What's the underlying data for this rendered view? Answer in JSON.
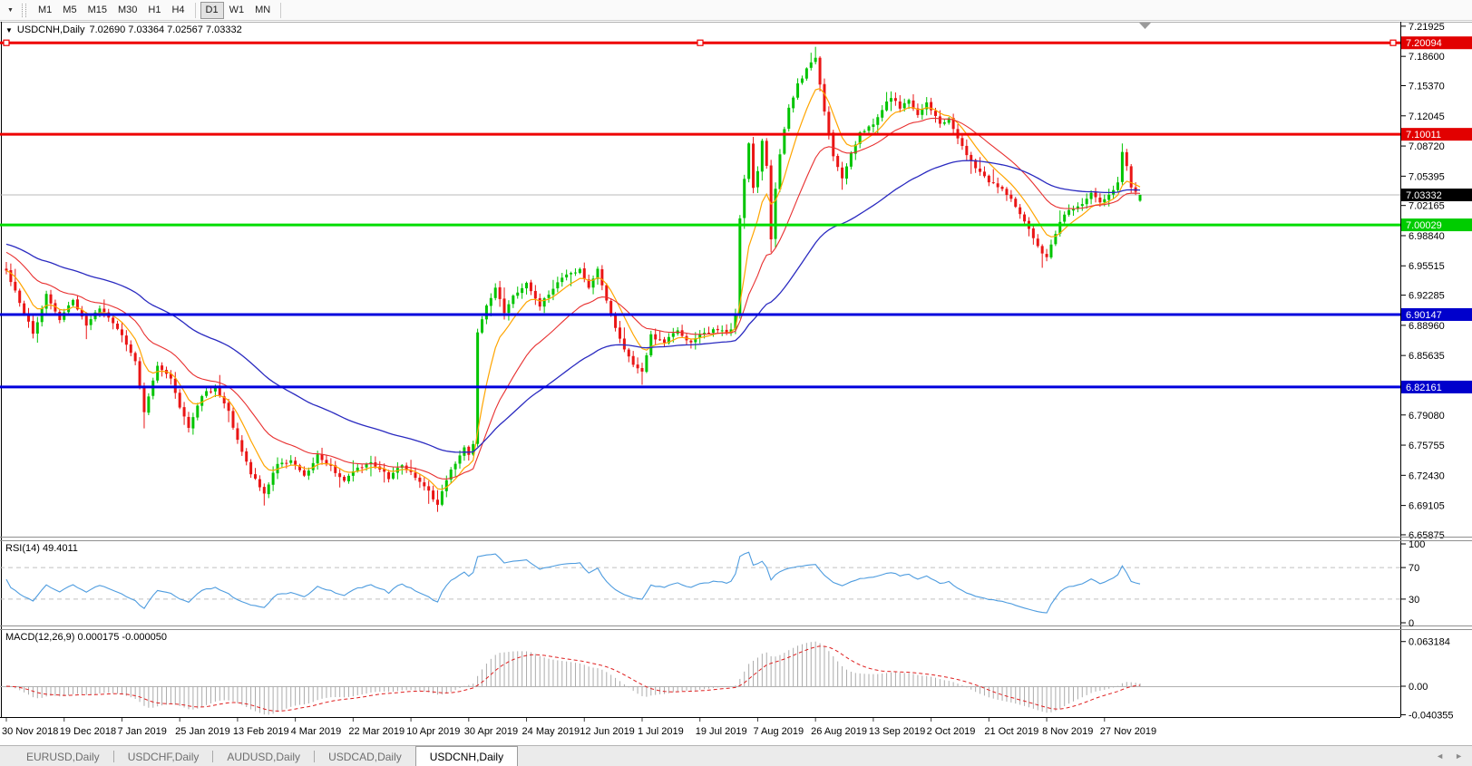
{
  "icons": {
    "toolbar_dropdown": "▼",
    "title_arrow": "▼",
    "tabs_prev": "◄",
    "tabs_next": "►",
    "shift_marker": "▼"
  },
  "toolbar": {
    "timeframes": [
      "M1",
      "M5",
      "M15",
      "M30",
      "H1",
      "H4",
      "D1",
      "W1",
      "MN"
    ],
    "selected": "D1",
    "separators_after": [
      5,
      8
    ]
  },
  "chart": {
    "symbol_period": "USDCNH,Daily",
    "ohlc_text": "7.02690 7.03364 7.02567 7.03332",
    "open": "7.02690",
    "high": "7.03364",
    "low": "7.02567",
    "close": "7.03332",
    "price_axis_ticks": [
      "7.21925",
      "7.18600",
      "7.15370",
      "7.12045",
      "7.08720",
      "7.05395",
      "7.02165",
      "6.98840",
      "6.95515",
      "6.92285",
      "6.88960",
      "6.85635",
      "6.79080",
      "6.75755",
      "6.72430",
      "6.69105",
      "6.65875"
    ],
    "horizontal_lines": [
      {
        "price": "7.20094",
        "color": "#EE0000",
        "label_bg": "#E20000",
        "selected": true
      },
      {
        "price": "7.10011",
        "color": "#EE0000",
        "label_bg": "#E20000",
        "selected": false
      },
      {
        "price": "7.00029",
        "color": "#00DD00",
        "label_bg": "#00CC00",
        "selected": false
      },
      {
        "price": "6.90147",
        "color": "#0000DD",
        "label_bg": "#0000CC",
        "selected": false
      },
      {
        "price": "6.82161",
        "color": "#0000DD",
        "label_bg": "#0000CC",
        "selected": false
      }
    ],
    "current_price": {
      "label": "7.03332",
      "label_bg": "#000000"
    },
    "colors": {
      "up": "#00C400",
      "down": "#EA1515",
      "ma_fast": "#FFA500",
      "ma_mid": "#E83030",
      "ma_slow": "#2A2AC0",
      "rsi": "#4E9CDF",
      "macd_hist": "#ABABAB",
      "macd_signal": "#DF2020",
      "current_price_line": "#B8B8B8",
      "level_dash": "#C0C0C0"
    }
  },
  "rsi": {
    "label": "RSI(14) 49.4011",
    "name": "RSI",
    "period": 14,
    "current": 49.4011,
    "axis_ticks": [
      "100",
      "70",
      "30",
      "0"
    ],
    "dashed_levels": [
      70,
      30
    ]
  },
  "macd": {
    "label": "MACD(12,26,9) 0.000175 -0.000050",
    "name": "MACD",
    "fast": 12,
    "slow": 26,
    "signal_period": 9,
    "current_macd": 0.000175,
    "current_signal": -5e-05,
    "axis_ticks": [
      "0.063184",
      "0.00",
      "-0.040355"
    ]
  },
  "tabs": {
    "items": [
      {
        "label": "EURUSD,Daily",
        "active": false
      },
      {
        "label": "USDCHF,Daily",
        "active": false
      },
      {
        "label": "AUDUSD,Daily",
        "active": false
      },
      {
        "label": "USDCAD,Daily",
        "active": false
      },
      {
        "label": "USDCNH,Daily",
        "active": true
      }
    ]
  },
  "chart_data": {
    "type": "candlestick",
    "symbol": "USDCNH",
    "timeframe": "Daily",
    "bar_count": 256,
    "bars_per_date_tick": 13,
    "y_range": [
      6.65875,
      7.21925
    ],
    "current_bar_ohlc": {
      "open": 7.0269,
      "high": 7.03364,
      "low": 7.02567,
      "close": 7.03332
    },
    "date_labels": [
      "30 Nov 2018",
      "19 Dec 2018",
      "7 Jan 2019",
      "25 Jan 2019",
      "13 Feb 2019",
      "4 Mar 2019",
      "22 Mar 2019",
      "10 Apr 2019",
      "30 Apr 2019",
      "24 May 2019",
      "12 Jun 2019",
      "1 Jul 2019",
      "19 Jul 2019",
      "7 Aug 2019",
      "26 Aug 2019",
      "13 Sep 2019",
      "2 Oct 2019",
      "21 Oct 2019",
      "8 Nov 2019",
      "27 Nov 2019"
    ],
    "horizontal_levels": [
      7.20094,
      7.10011,
      7.00029,
      6.90147,
      6.82161
    ],
    "close_path_anchors": [
      [
        0,
        6.95
      ],
      [
        3,
        6.915
      ],
      [
        6,
        6.88
      ],
      [
        9,
        6.925
      ],
      [
        12,
        6.895
      ],
      [
        15,
        6.918
      ],
      [
        18,
        6.89
      ],
      [
        21,
        6.908
      ],
      [
        24,
        6.892
      ],
      [
        26,
        6.88
      ],
      [
        29,
        6.848
      ],
      [
        31,
        6.795
      ],
      [
        34,
        6.845
      ],
      [
        37,
        6.83
      ],
      [
        39,
        6.8
      ],
      [
        41,
        6.778
      ],
      [
        44,
        6.812
      ],
      [
        47,
        6.822
      ],
      [
        50,
        6.795
      ],
      [
        52,
        6.762
      ],
      [
        55,
        6.726
      ],
      [
        58,
        6.706
      ],
      [
        61,
        6.735
      ],
      [
        64,
        6.742
      ],
      [
        67,
        6.722
      ],
      [
        70,
        6.748
      ],
      [
        73,
        6.733
      ],
      [
        76,
        6.718
      ],
      [
        78,
        6.73
      ],
      [
        82,
        6.74
      ],
      [
        86,
        6.722
      ],
      [
        89,
        6.735
      ],
      [
        91,
        6.728
      ],
      [
        94,
        6.712
      ],
      [
        97,
        6.692
      ],
      [
        100,
        6.73
      ],
      [
        103,
        6.756
      ],
      [
        104,
        6.745
      ],
      [
        105,
        6.76
      ],
      [
        106,
        6.88
      ],
      [
        108,
        6.912
      ],
      [
        110,
        6.93
      ],
      [
        112,
        6.905
      ],
      [
        114,
        6.922
      ],
      [
        117,
        6.935
      ],
      [
        120,
        6.912
      ],
      [
        123,
        6.93
      ],
      [
        126,
        6.945
      ],
      [
        129,
        6.952
      ],
      [
        131,
        6.93
      ],
      [
        133,
        6.95
      ],
      [
        135,
        6.915
      ],
      [
        137,
        6.885
      ],
      [
        139,
        6.862
      ],
      [
        141,
        6.848
      ],
      [
        143,
        6.838
      ],
      [
        145,
        6.878
      ],
      [
        148,
        6.872
      ],
      [
        151,
        6.885
      ],
      [
        154,
        6.87
      ],
      [
        156,
        6.878
      ],
      [
        159,
        6.885
      ],
      [
        161,
        6.882
      ],
      [
        163,
        6.885
      ],
      [
        164,
        6.902
      ],
      [
        165,
        7.008
      ],
      [
        166,
        7.05
      ],
      [
        167,
        7.088
      ],
      [
        168,
        7.042
      ],
      [
        169,
        7.06
      ],
      [
        170,
        7.092
      ],
      [
        171,
        7.065
      ],
      [
        172,
        6.985
      ],
      [
        173,
        7.042
      ],
      [
        174,
        7.078
      ],
      [
        175,
        7.105
      ],
      [
        176,
        7.13
      ],
      [
        178,
        7.155
      ],
      [
        180,
        7.172
      ],
      [
        182,
        7.185
      ],
      [
        184,
        7.125
      ],
      [
        186,
        7.075
      ],
      [
        188,
        7.052
      ],
      [
        190,
        7.078
      ],
      [
        192,
        7.102
      ],
      [
        195,
        7.112
      ],
      [
        197,
        7.128
      ],
      [
        199,
        7.142
      ],
      [
        201,
        7.128
      ],
      [
        203,
        7.138
      ],
      [
        205,
        7.12
      ],
      [
        207,
        7.135
      ],
      [
        208,
        7.128
      ],
      [
        210,
        7.112
      ],
      [
        212,
        7.118
      ],
      [
        214,
        7.095
      ],
      [
        216,
        7.078
      ],
      [
        218,
        7.062
      ],
      [
        220,
        7.055
      ],
      [
        221,
        7.048
      ],
      [
        224,
        7.04
      ],
      [
        227,
        7.022
      ],
      [
        230,
        6.995
      ],
      [
        232,
        6.975
      ],
      [
        234,
        6.965
      ],
      [
        236,
        6.992
      ],
      [
        238,
        7.012
      ],
      [
        240,
        7.018
      ],
      [
        242,
        7.022
      ],
      [
        244,
        7.035
      ],
      [
        246,
        7.025
      ],
      [
        248,
        7.032
      ],
      [
        250,
        7.045
      ],
      [
        251,
        7.082
      ],
      [
        252,
        7.065
      ],
      [
        253,
        7.042
      ],
      [
        254,
        7.038
      ],
      [
        255,
        7.03332
      ]
    ],
    "wick_extremes": [
      [
        31,
        "low",
        6.776
      ],
      [
        58,
        "low",
        6.691
      ],
      [
        97,
        "low",
        6.684
      ],
      [
        143,
        "low",
        6.824
      ],
      [
        172,
        "low",
        6.97
      ],
      [
        181,
        "high",
        7.19
      ],
      [
        182,
        "high",
        7.1965
      ],
      [
        188,
        "low",
        7.044
      ],
      [
        233,
        "low",
        6.953
      ],
      [
        251,
        "high",
        7.09
      ]
    ],
    "indicators": {
      "rsi": {
        "period": 14,
        "current": 49.4011,
        "scale": [
          0,
          100
        ],
        "levels": [
          70,
          30
        ]
      },
      "macd": {
        "fast": 12,
        "slow": 26,
        "signal": 9,
        "current": [
          0.000175,
          -5e-05
        ],
        "axis_max": 0.063184,
        "axis_min": -0.040355
      },
      "moving_averages": [
        {
          "name": "fast-ma",
          "color_key": "ma_fast",
          "period": 8
        },
        {
          "name": "mid-ma",
          "color_key": "ma_mid",
          "period": 22
        },
        {
          "name": "slow-ma",
          "color_key": "ma_slow",
          "period": 58
        }
      ]
    }
  }
}
